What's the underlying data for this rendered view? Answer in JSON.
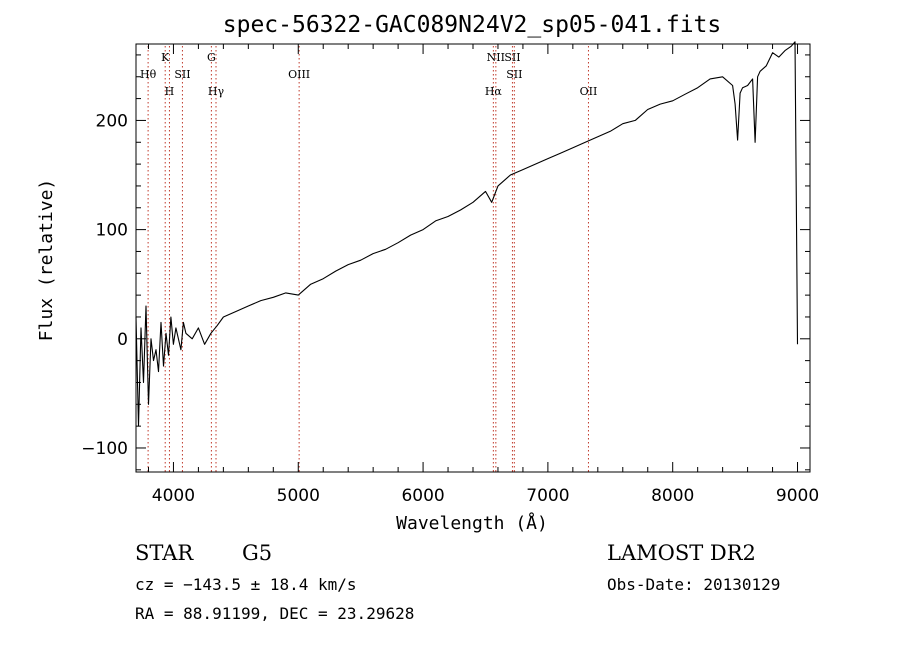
{
  "chart_data": {
    "type": "line",
    "title": "spec-56322-GAC089N24V2_sp05-041.fits",
    "xlabel": "Wavelength (Å)",
    "ylabel": "Flux (relative)",
    "xlim": [
      3700,
      9100
    ],
    "ylim": [
      -122,
      270
    ],
    "xticks": [
      4000,
      5000,
      6000,
      7000,
      8000,
      9000
    ],
    "yticks": [
      -100,
      0,
      100,
      200
    ],
    "xtick_labels": [
      "4000",
      "5000",
      "6000",
      "7000",
      "8000",
      "9000"
    ],
    "ytick_labels": [
      "−100",
      "0",
      "100",
      "200"
    ],
    "grid": false,
    "series": [
      {
        "color": "#000000",
        "x": [
          3700,
          3720,
          3740,
          3760,
          3780,
          3800,
          3820,
          3840,
          3860,
          3880,
          3900,
          3920,
          3940,
          3960,
          3980,
          4000,
          4020,
          4040,
          4060,
          4080,
          4100,
          4150,
          4200,
          4250,
          4300,
          4350,
          4400,
          4500,
          4600,
          4700,
          4800,
          4900,
          5000,
          5100,
          5200,
          5300,
          5400,
          5500,
          5600,
          5700,
          5800,
          5900,
          6000,
          6100,
          6200,
          6300,
          6400,
          6500,
          6550,
          6600,
          6700,
          6800,
          6900,
          7000,
          7100,
          7200,
          7300,
          7400,
          7500,
          7600,
          7700,
          7800,
          7900,
          8000,
          8100,
          8200,
          8300,
          8400,
          8480,
          8500,
          8520,
          8540,
          8560,
          8600,
          8640,
          8660,
          8680,
          8700,
          8750,
          8800,
          8850,
          8900,
          8950,
          8980,
          9000
        ],
        "y": [
          20,
          -80,
          10,
          -40,
          30,
          -60,
          0,
          -20,
          -10,
          -30,
          15,
          -25,
          5,
          -15,
          20,
          -5,
          10,
          0,
          -10,
          15,
          5,
          0,
          10,
          -5,
          5,
          12,
          20,
          25,
          30,
          35,
          38,
          42,
          40,
          50,
          55,
          62,
          68,
          72,
          78,
          82,
          88,
          95,
          100,
          108,
          112,
          118,
          125,
          135,
          125,
          140,
          150,
          155,
          160,
          165,
          170,
          175,
          180,
          185,
          190,
          197,
          200,
          210,
          215,
          218,
          224,
          230,
          238,
          240,
          232,
          215,
          182,
          225,
          230,
          232,
          238,
          180,
          240,
          245,
          250,
          262,
          258,
          264,
          268,
          272,
          -5
        ]
      }
    ],
    "spectral_lines": [
      {
        "wavelength": 3797,
        "label": "Hθ",
        "row": 2
      },
      {
        "wavelength": 3934,
        "label": "K",
        "row": 1
      },
      {
        "wavelength": 3968,
        "label": "H",
        "row": 3
      },
      {
        "wavelength": 4072,
        "label": "SII",
        "row": 2
      },
      {
        "wavelength": 4304,
        "label": "G",
        "row": 1
      },
      {
        "wavelength": 4341,
        "label": "Hγ",
        "row": 3
      },
      {
        "wavelength": 5007,
        "label": "OIII",
        "row": 2
      },
      {
        "wavelength": 6563,
        "label": "Hα",
        "row": 3
      },
      {
        "wavelength": 6583,
        "label": "NII",
        "row": 1
      },
      {
        "wavelength": 6716,
        "label": "SII",
        "row": 1
      },
      {
        "wavelength": 6731,
        "label": "SII",
        "row": 2
      },
      {
        "wavelength": 7325,
        "label": "OII",
        "row": 3
      }
    ],
    "line_marker_color": "#c0392b"
  },
  "info": {
    "class": "STAR",
    "subclass": "G5",
    "survey": "LAMOST DR2",
    "cz": "cz = −143.5 ± 18.4 km/s",
    "obs_date": "Obs-Date: 20130129",
    "radec": "RA =  88.91199, DEC =  23.29628"
  }
}
